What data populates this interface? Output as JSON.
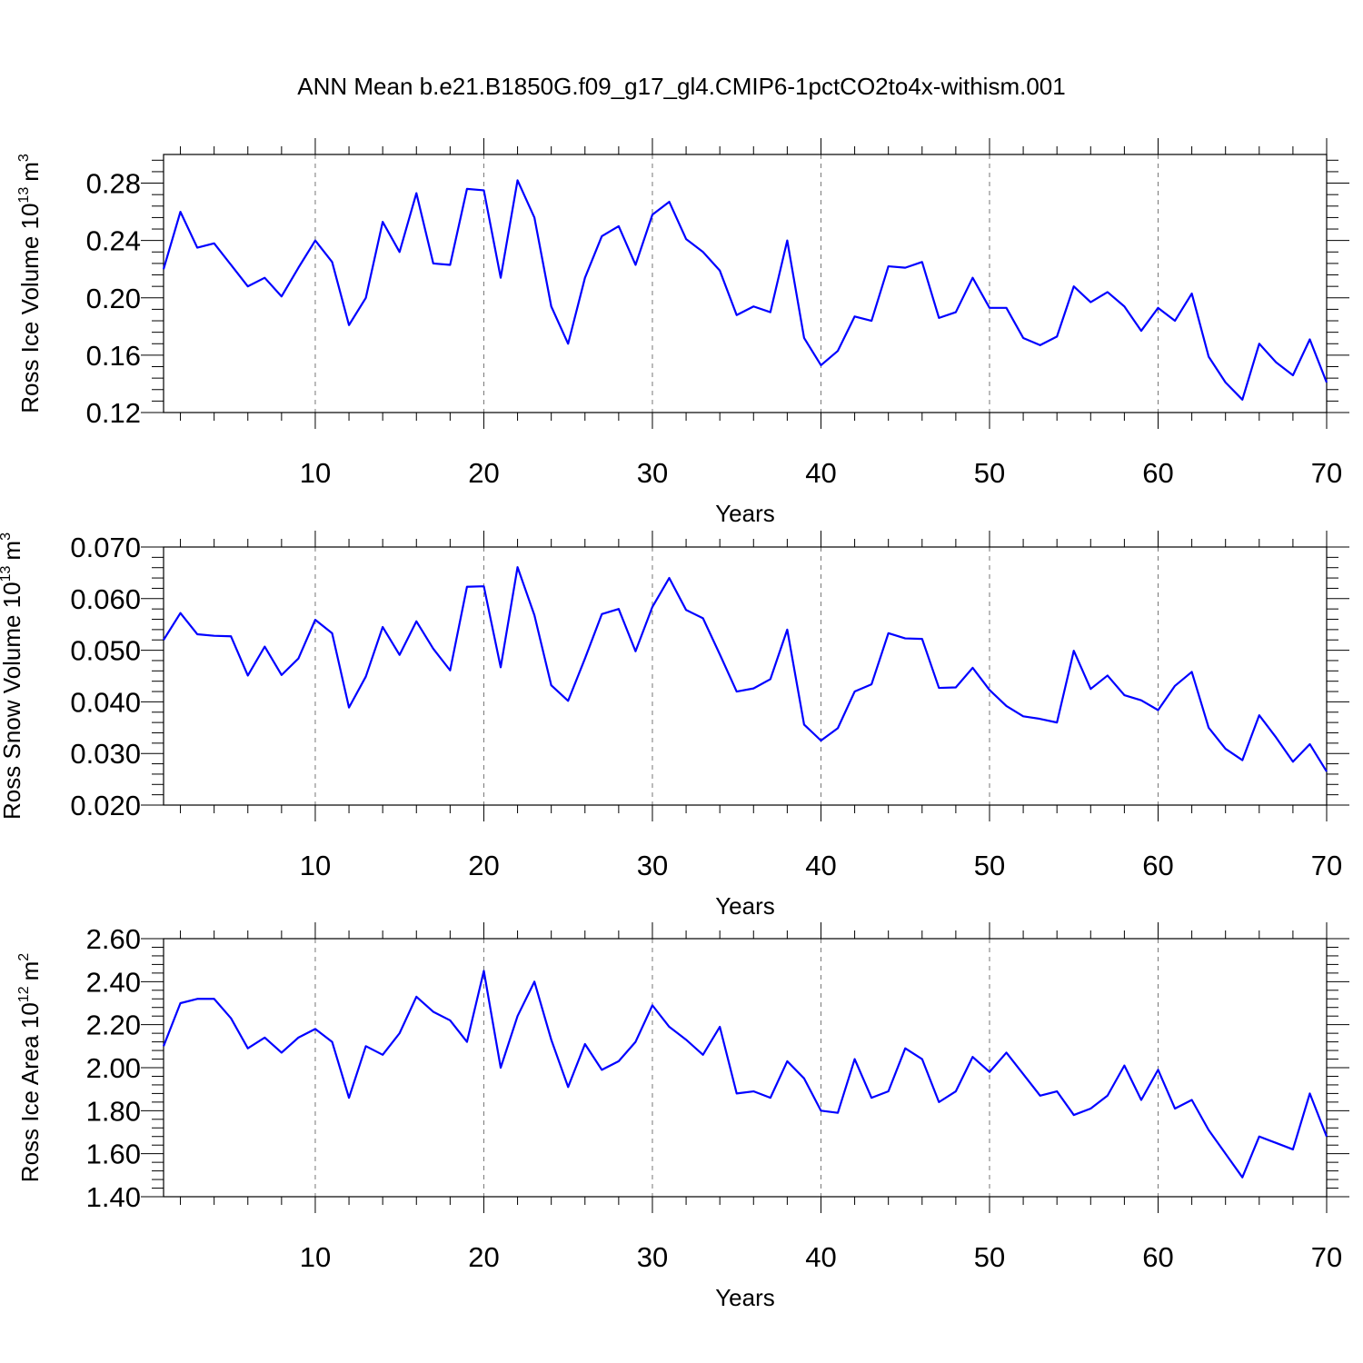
{
  "title": "ANN Mean b.e21.B1850G.f09_g17_gl4.CMIP6-1pctCO2to4x-withism.001",
  "colors": {
    "line": "#0000ff",
    "axis": "#000000",
    "grid": "#777777"
  },
  "chart_data": [
    {
      "type": "line",
      "name": "ice-volume",
      "ylabel_text": "Ross Ice Volume 10",
      "ylabel_exp": "13",
      "ylabel_unit": "m",
      "ylabel_unit_exp": "3",
      "xlabel": "Years",
      "xlim": [
        1,
        70
      ],
      "ylim": [
        0.12,
        0.3
      ],
      "yticks": [
        0.12,
        0.16,
        0.2,
        0.24,
        0.28
      ],
      "ytick_labels": [
        "0.12",
        "0.16",
        "0.20",
        "0.24",
        "0.28"
      ],
      "xticks": [
        10,
        20,
        30,
        40,
        50,
        60,
        70
      ],
      "xtick_labels": [
        "10",
        "20",
        "30",
        "40",
        "50",
        "60",
        "70"
      ],
      "grid": "vertical dashed at major x ticks",
      "x": [
        1,
        2,
        3,
        4,
        5,
        6,
        7,
        8,
        9,
        10,
        11,
        12,
        13,
        14,
        15,
        16,
        17,
        18,
        19,
        20,
        21,
        22,
        23,
        24,
        25,
        26,
        27,
        28,
        29,
        30,
        31,
        32,
        33,
        34,
        35,
        36,
        37,
        38,
        39,
        40,
        41,
        42,
        43,
        44,
        45,
        46,
        47,
        48,
        49,
        50,
        51,
        52,
        53,
        54,
        55,
        56,
        57,
        58,
        59,
        60,
        61,
        62,
        63,
        64,
        65,
        66,
        67,
        68,
        69,
        70
      ],
      "values": [
        0.22,
        0.26,
        0.235,
        0.238,
        0.223,
        0.208,
        0.214,
        0.201,
        0.221,
        0.24,
        0.225,
        0.181,
        0.2,
        0.253,
        0.232,
        0.273,
        0.224,
        0.223,
        0.276,
        0.275,
        0.214,
        0.282,
        0.256,
        0.194,
        0.168,
        0.214,
        0.243,
        0.25,
        0.223,
        0.258,
        0.267,
        0.241,
        0.232,
        0.219,
        0.188,
        0.194,
        0.19,
        0.24,
        0.172,
        0.153,
        0.163,
        0.187,
        0.184,
        0.222,
        0.221,
        0.225,
        0.186,
        0.19,
        0.214,
        0.193,
        0.193,
        0.172,
        0.167,
        0.173,
        0.208,
        0.197,
        0.204,
        0.194,
        0.177,
        0.193,
        0.184,
        0.203,
        0.159,
        0.141,
        0.129,
        0.168,
        0.155,
        0.146,
        0.171,
        0.141
      ]
    },
    {
      "type": "line",
      "name": "snow-volume",
      "ylabel_text": "Ross Snow Volume 10",
      "ylabel_exp": "13",
      "ylabel_unit": "m",
      "ylabel_unit_exp": "3",
      "xlabel": "Years",
      "xlim": [
        1,
        70
      ],
      "ylim": [
        0.02,
        0.07
      ],
      "yticks": [
        0.02,
        0.03,
        0.04,
        0.05,
        0.06,
        0.07
      ],
      "ytick_labels": [
        "0.020",
        "0.030",
        "0.040",
        "0.050",
        "0.060",
        "0.070"
      ],
      "xticks": [
        10,
        20,
        30,
        40,
        50,
        60,
        70
      ],
      "xtick_labels": [
        "10",
        "20",
        "30",
        "40",
        "50",
        "60",
        "70"
      ],
      "grid": "vertical dashed at major x ticks",
      "x": [
        1,
        2,
        3,
        4,
        5,
        6,
        7,
        8,
        9,
        10,
        11,
        12,
        13,
        14,
        15,
        16,
        17,
        18,
        19,
        20,
        21,
        22,
        23,
        24,
        25,
        26,
        27,
        28,
        29,
        30,
        31,
        32,
        33,
        34,
        35,
        36,
        37,
        38,
        39,
        40,
        41,
        42,
        43,
        44,
        45,
        46,
        47,
        48,
        49,
        50,
        51,
        52,
        53,
        54,
        55,
        56,
        57,
        58,
        59,
        60,
        61,
        62,
        63,
        64,
        65,
        66,
        67,
        68,
        69,
        70
      ],
      "values": [
        0.052,
        0.0572,
        0.0531,
        0.0528,
        0.0527,
        0.0451,
        0.0507,
        0.0452,
        0.0484,
        0.0559,
        0.0533,
        0.0389,
        0.0449,
        0.0545,
        0.0491,
        0.0556,
        0.0503,
        0.0461,
        0.0623,
        0.0624,
        0.0467,
        0.0661,
        0.0568,
        0.0432,
        0.0402,
        0.0484,
        0.057,
        0.058,
        0.0498,
        0.0584,
        0.064,
        0.0578,
        0.0562,
        0.0492,
        0.042,
        0.0426,
        0.0444,
        0.054,
        0.0356,
        0.0325,
        0.0349,
        0.042,
        0.0434,
        0.0533,
        0.0523,
        0.0522,
        0.0427,
        0.0428,
        0.0466,
        0.0423,
        0.0392,
        0.0372,
        0.0367,
        0.036,
        0.0499,
        0.0425,
        0.0451,
        0.0413,
        0.0403,
        0.0384,
        0.0431,
        0.0458,
        0.035,
        0.0309,
        0.0287,
        0.0374,
        0.0331,
        0.0284,
        0.0318,
        0.0265
      ]
    },
    {
      "type": "line",
      "name": "ice-area",
      "ylabel_text": "Ross Ice Area 10",
      "ylabel_exp": "12",
      "ylabel_unit": "m",
      "ylabel_unit_exp": "2",
      "xlabel": "Years",
      "xlim": [
        1,
        70
      ],
      "ylim": [
        1.4,
        2.6
      ],
      "yticks": [
        1.4,
        1.6,
        1.8,
        2.0,
        2.2,
        2.4,
        2.6
      ],
      "ytick_labels": [
        "1.40",
        "1.60",
        "1.80",
        "2.00",
        "2.20",
        "2.40",
        "2.60"
      ],
      "xticks": [
        10,
        20,
        30,
        40,
        50,
        60,
        70
      ],
      "xtick_labels": [
        "10",
        "20",
        "30",
        "40",
        "50",
        "60",
        "70"
      ],
      "grid": "vertical dashed at major x ticks",
      "x": [
        1,
        2,
        3,
        4,
        5,
        6,
        7,
        8,
        9,
        10,
        11,
        12,
        13,
        14,
        15,
        16,
        17,
        18,
        19,
        20,
        21,
        22,
        23,
        24,
        25,
        26,
        27,
        28,
        29,
        30,
        31,
        32,
        33,
        34,
        35,
        36,
        37,
        38,
        39,
        40,
        41,
        42,
        43,
        44,
        45,
        46,
        47,
        48,
        49,
        50,
        51,
        52,
        53,
        54,
        55,
        56,
        57,
        58,
        59,
        60,
        61,
        62,
        63,
        64,
        65,
        66,
        67,
        68,
        69,
        70
      ],
      "values": [
        2.1,
        2.3,
        2.32,
        2.32,
        2.23,
        2.09,
        2.14,
        2.07,
        2.14,
        2.18,
        2.12,
        1.86,
        2.1,
        2.06,
        2.16,
        2.33,
        2.26,
        2.22,
        2.12,
        2.45,
        2.0,
        2.24,
        2.4,
        2.13,
        1.91,
        2.11,
        1.99,
        2.03,
        2.12,
        2.29,
        2.19,
        2.13,
        2.06,
        2.19,
        1.88,
        1.89,
        1.86,
        2.03,
        1.95,
        1.8,
        1.79,
        2.04,
        1.86,
        1.89,
        2.09,
        2.04,
        1.84,
        1.89,
        2.05,
        1.98,
        2.07,
        1.97,
        1.87,
        1.89,
        1.78,
        1.81,
        1.87,
        2.01,
        1.85,
        1.99,
        1.81,
        1.85,
        1.71,
        1.6,
        1.49,
        1.68,
        1.65,
        1.62,
        1.88,
        1.68
      ]
    }
  ]
}
